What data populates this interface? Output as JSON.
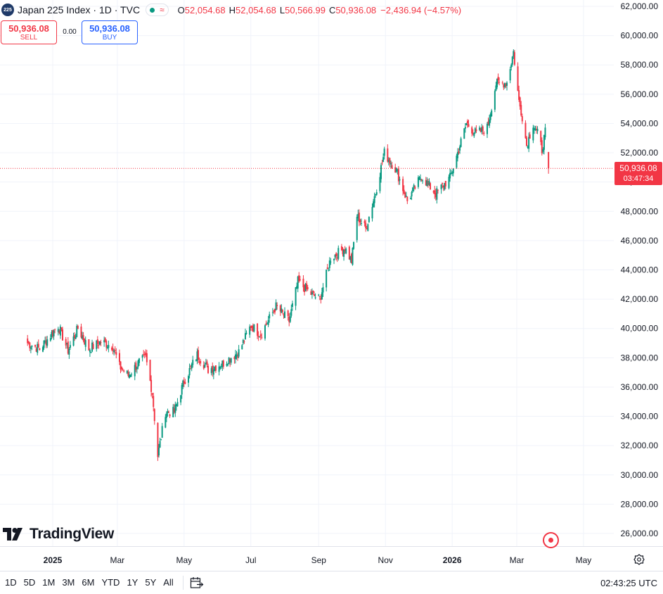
{
  "symbol": {
    "badge": "225",
    "title": "Japan 225 Index · 1D · TVC",
    "status_icon": "market-open-dot",
    "ohlc": {
      "o_label": "O",
      "o_value": "52,054.68",
      "h_label": "H",
      "h_value": "52,054.68",
      "l_label": "L",
      "l_value": "50,566.99",
      "c_label": "C",
      "c_value": "50,936.08",
      "change": "−2,436.94 (−4.57%)"
    }
  },
  "trade": {
    "sell_price": "50,936.08",
    "sell_label": "SELL",
    "spread": "0.00",
    "buy_price": "50,936.08",
    "buy_label": "BUY"
  },
  "last_price": {
    "price": "50,936.08",
    "countdown": "03:47:34"
  },
  "branding": {
    "logo_text": "TradingView"
  },
  "time_ranges": [
    "1D",
    "5D",
    "1M",
    "3M",
    "6M",
    "YTD",
    "1Y",
    "5Y",
    "All"
  ],
  "clock": "02:43:25 UTC",
  "colors": {
    "up": "#089981",
    "down": "#f23645",
    "accent": "#2962ff",
    "grid": "#f0f3fa"
  },
  "chart_data": {
    "type": "candlestick",
    "title": "Japan 225 Index · 1D · TVC",
    "ylim": [
      25000,
      62500
    ],
    "y_ticks": [
      "62,000.00",
      "60,000.00",
      "58,000.00",
      "56,000.00",
      "54,000.00",
      "52,000.00",
      "50,000.00",
      "48,000.00",
      "46,000.00",
      "44,000.00",
      "42,000.00",
      "40,000.00",
      "38,000.00",
      "36,000.00",
      "34,000.00",
      "32,000.00",
      "30,000.00",
      "28,000.00",
      "26,000.00"
    ],
    "x_ticks": [
      {
        "label": "2025",
        "bold": true,
        "date": "2025-01-01"
      },
      {
        "label": "Mar",
        "bold": false,
        "date": "2025-03-01"
      },
      {
        "label": "May",
        "bold": false,
        "date": "2025-05-01"
      },
      {
        "label": "Jul",
        "bold": false,
        "date": "2025-07-01"
      },
      {
        "label": "Sep",
        "bold": false,
        "date": "2025-09-01"
      },
      {
        "label": "Nov",
        "bold": false,
        "date": "2025-11-01"
      },
      {
        "label": "2026",
        "bold": true,
        "date": "2026-01-01"
      },
      {
        "label": "Mar",
        "bold": false,
        "date": "2026-03-01"
      },
      {
        "label": "May",
        "bold": false,
        "date": "2026-05-01"
      }
    ],
    "last_close": 50936.08,
    "series": [
      {
        "date": "2024-12-09",
        "close": 39000
      },
      {
        "date": "2024-12-20",
        "close": 38600
      },
      {
        "date": "2025-01-06",
        "close": 40200
      },
      {
        "date": "2025-01-15",
        "close": 38500
      },
      {
        "date": "2025-01-24",
        "close": 40000
      },
      {
        "date": "2025-02-03",
        "close": 38600
      },
      {
        "date": "2025-02-14",
        "close": 39100
      },
      {
        "date": "2025-02-25",
        "close": 38800
      },
      {
        "date": "2025-03-03",
        "close": 37400
      },
      {
        "date": "2025-03-11",
        "close": 36800
      },
      {
        "date": "2025-03-21",
        "close": 37700
      },
      {
        "date": "2025-03-27",
        "close": 38000
      },
      {
        "date": "2025-04-02",
        "close": 35600
      },
      {
        "date": "2025-04-07",
        "close": 31300
      },
      {
        "date": "2025-04-14",
        "close": 34300
      },
      {
        "date": "2025-04-22",
        "close": 34300
      },
      {
        "date": "2025-05-01",
        "close": 36400
      },
      {
        "date": "2025-05-13",
        "close": 38200
      },
      {
        "date": "2025-05-23",
        "close": 37200
      },
      {
        "date": "2025-06-05",
        "close": 37600
      },
      {
        "date": "2025-06-20",
        "close": 38400
      },
      {
        "date": "2025-07-01",
        "close": 40200
      },
      {
        "date": "2025-07-10",
        "close": 39600
      },
      {
        "date": "2025-07-24",
        "close": 41500
      },
      {
        "date": "2025-08-05",
        "close": 40500
      },
      {
        "date": "2025-08-13",
        "close": 43200
      },
      {
        "date": "2025-08-26",
        "close": 42300
      },
      {
        "date": "2025-09-02",
        "close": 42000
      },
      {
        "date": "2025-09-12",
        "close": 44800
      },
      {
        "date": "2025-09-25",
        "close": 45500
      },
      {
        "date": "2025-10-01",
        "close": 44600
      },
      {
        "date": "2025-10-06",
        "close": 47700
      },
      {
        "date": "2025-10-14",
        "close": 46800
      },
      {
        "date": "2025-10-23",
        "close": 49300
      },
      {
        "date": "2025-10-31",
        "close": 52000
      },
      {
        "date": "2025-11-11",
        "close": 50800
      },
      {
        "date": "2025-11-21",
        "close": 48700
      },
      {
        "date": "2025-12-04",
        "close": 50400
      },
      {
        "date": "2025-12-17",
        "close": 49200
      },
      {
        "date": "2025-12-30",
        "close": 50300
      },
      {
        "date": "2026-01-06",
        "close": 52000
      },
      {
        "date": "2026-01-14",
        "close": 54000
      },
      {
        "date": "2026-01-23",
        "close": 53300
      },
      {
        "date": "2026-02-02",
        "close": 53700
      },
      {
        "date": "2026-02-10",
        "close": 56700
      },
      {
        "date": "2026-02-20",
        "close": 56800
      },
      {
        "date": "2026-02-26",
        "close": 58900
      },
      {
        "date": "2026-03-03",
        "close": 55500
      },
      {
        "date": "2026-03-06",
        "close": 54500
      },
      {
        "date": "2026-03-10",
        "close": 52500
      },
      {
        "date": "2026-03-16",
        "close": 54000
      },
      {
        "date": "2026-03-20",
        "close": 53300
      },
      {
        "date": "2026-03-24",
        "close": 52200
      },
      {
        "date": "2026-03-27",
        "close": 53373
      },
      {
        "date": "2026-03-30",
        "close": 50936
      }
    ]
  }
}
